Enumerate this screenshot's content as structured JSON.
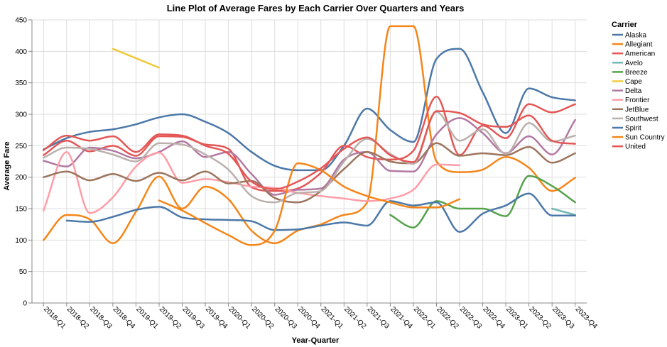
{
  "chart_data": {
    "type": "line",
    "title": "Line Plot of Average Fares by Each Carrier Over Quarters and Years",
    "xlabel": "Year-Quarter",
    "ylabel": "Average Fare",
    "ylim": [
      0,
      450
    ],
    "y_ticks": [
      0,
      50,
      100,
      150,
      200,
      250,
      300,
      350,
      400,
      450
    ],
    "grid": true,
    "legend_title": "Carrier",
    "legend_position": "right",
    "categories": [
      "2018-Q1",
      "2018-Q2",
      "2018-Q3",
      "2018-Q4",
      "2019-Q1",
      "2019-Q2",
      "2019-Q3",
      "2019-Q4",
      "2020-Q1",
      "2020-Q2",
      "2020-Q3",
      "2020-Q4",
      "2021-Q1",
      "2021-Q2",
      "2021-Q3",
      "2021-Q4",
      "2022-Q1",
      "2022-Q2",
      "2022-Q3",
      "2022-Q4",
      "2023-Q1",
      "2023-Q2",
      "2023-Q3",
      "2023-Q4"
    ],
    "series": [
      {
        "name": "Alaska",
        "color": "#4c78a8",
        "values": [
          244,
          262,
          272,
          276,
          284,
          295,
          300,
          288,
          270,
          240,
          218,
          211,
          211,
          250,
          309,
          275,
          256,
          388,
          404,
          335,
          270,
          341,
          327,
          322
        ]
      },
      {
        "name": "Allegiant",
        "color": "#f58518",
        "values": [
          100,
          140,
          133,
          95,
          145,
          201,
          150,
          185,
          165,
          115,
          95,
          115,
          125,
          140,
          160,
          440,
          440,
          225,
          208,
          212,
          232,
          215,
          178,
          199
        ]
      },
      {
        "name": "American",
        "color": "#e45756",
        "values": [
          235,
          258,
          241,
          250,
          234,
          265,
          264,
          252,
          245,
          184,
          178,
          182,
          207,
          250,
          232,
          228,
          242,
          328,
          235,
          282,
          262,
          316,
          303,
          316
        ]
      },
      {
        "name": "Avelo",
        "color": "#72b7b2",
        "values": [
          null,
          null,
          null,
          null,
          null,
          null,
          null,
          null,
          null,
          null,
          null,
          null,
          null,
          null,
          null,
          null,
          null,
          null,
          null,
          null,
          null,
          null,
          150,
          140
        ]
      },
      {
        "name": "Breeze",
        "color": "#54a24b",
        "values": [
          null,
          null,
          null,
          null,
          null,
          null,
          null,
          null,
          null,
          null,
          null,
          null,
          null,
          null,
          null,
          140,
          120,
          162,
          150,
          150,
          138,
          202,
          186,
          160
        ]
      },
      {
        "name": "Cape",
        "color": "#eeca3b",
        "values": [
          null,
          null,
          null,
          404,
          389,
          374,
          null,
          null,
          null,
          null,
          null,
          null,
          null,
          null,
          null,
          null,
          null,
          null,
          null,
          null,
          null,
          null,
          null,
          null
        ]
      },
      {
        "name": "Delta",
        "color": "#b279a2",
        "values": [
          226,
          217,
          247,
          242,
          230,
          240,
          257,
          232,
          240,
          205,
          172,
          180,
          182,
          228,
          240,
          210,
          209,
          268,
          294,
          270,
          238,
          265,
          236,
          291
        ]
      },
      {
        "name": "Frontier",
        "color": "#ff9da6",
        "values": [
          147,
          240,
          143,
          168,
          217,
          239,
          191,
          197,
          192,
          185,
          183,
          175,
          170,
          166,
          162,
          166,
          180,
          220,
          219,
          null,
          null,
          null,
          null,
          null
        ]
      },
      {
        "name": "JetBlue",
        "color": "#9d755d",
        "values": [
          200,
          209,
          195,
          205,
          194,
          207,
          195,
          209,
          190,
          194,
          167,
          160,
          178,
          213,
          240,
          225,
          222,
          254,
          234,
          238,
          235,
          248,
          223,
          238
        ]
      },
      {
        "name": "Southwest",
        "color": "#bab0ac",
        "values": [
          231,
          247,
          245,
          236,
          225,
          254,
          252,
          236,
          212,
          170,
          160,
          175,
          178,
          225,
          261,
          237,
          221,
          304,
          258,
          276,
          237,
          286,
          257,
          266
        ]
      },
      {
        "name": "Spirit",
        "color": "#4c78a8",
        "values": [
          null,
          131,
          129,
          137,
          148,
          153,
          136,
          133,
          132,
          130,
          116,
          117,
          123,
          128,
          123,
          162,
          155,
          160,
          113,
          142,
          155,
          174,
          139,
          139
        ]
      },
      {
        "name": "Sun Country",
        "color": "#f58518",
        "values": [
          null,
          null,
          null,
          null,
          null,
          163,
          147,
          127,
          108,
          92,
          115,
          222,
          211,
          185,
          170,
          160,
          152,
          152,
          165,
          null,
          null,
          null,
          null,
          null
        ]
      },
      {
        "name": "United",
        "color": "#e45756",
        "values": [
          243,
          266,
          258,
          265,
          240,
          268,
          266,
          250,
          237,
          193,
          181,
          193,
          214,
          245,
          263,
          235,
          224,
          305,
          302,
          284,
          280,
          298,
          258,
          253
        ]
      }
    ]
  }
}
